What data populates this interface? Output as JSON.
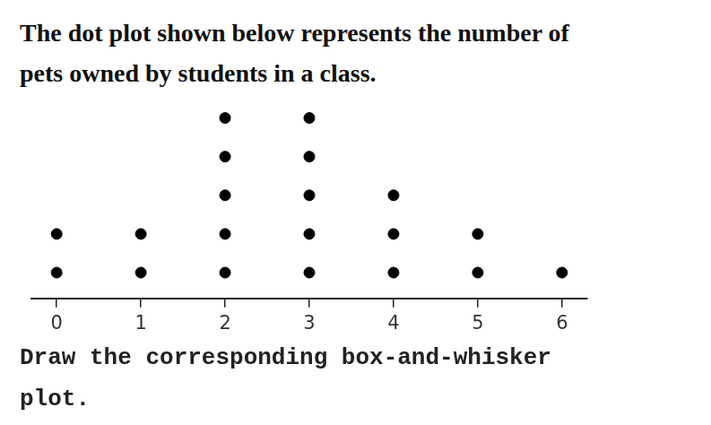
{
  "chart_data": {
    "type": "dot",
    "title": [
      "The dot plot shown below represents the number of",
      "pets owned by students in a class."
    ],
    "annotation": [
      "Draw the corresponding box-and-whisker",
      "plot."
    ],
    "x": [
      0,
      1,
      2,
      3,
      4,
      5,
      6
    ],
    "values": [
      2,
      2,
      5,
      5,
      3,
      2,
      1
    ],
    "color": "#000000",
    "marker": "circle",
    "xlim": [
      -0.3,
      6.3
    ],
    "xticks": [
      0,
      1,
      2,
      3,
      4,
      5,
      6
    ],
    "tick_labels": "x",
    "grid": false
  }
}
